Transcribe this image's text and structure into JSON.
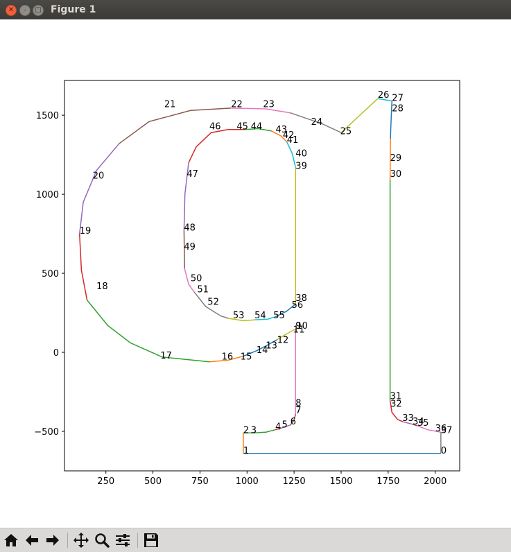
{
  "window": {
    "title": "Figure 1"
  },
  "toolbar": {
    "buttons": [
      {
        "name": "home-button",
        "icon": "home-icon"
      },
      {
        "name": "back-button",
        "icon": "arrow-left-icon"
      },
      {
        "name": "forward-button",
        "icon": "arrow-right-icon"
      },
      {
        "name": "pan-button",
        "icon": "move-icon"
      },
      {
        "name": "zoom-button",
        "icon": "magnifier-icon"
      },
      {
        "name": "configure-subplots-button",
        "icon": "sliders-icon"
      },
      {
        "name": "save-button",
        "icon": "floppy-disk-icon"
      }
    ]
  },
  "chart_data": {
    "type": "line",
    "title": "",
    "xlabel": "",
    "ylabel": "",
    "xlim": [
      30,
      2130
    ],
    "ylim": [
      -750,
      1720
    ],
    "grid": false,
    "xticks": [
      250,
      500,
      750,
      1000,
      1250,
      1500,
      1750,
      2000
    ],
    "yticks": [
      -500,
      0,
      500,
      1000,
      1500
    ],
    "xtick_labels": [
      "250",
      "500",
      "750",
      "1000",
      "1250",
      "1500",
      "1750",
      "2000"
    ],
    "ytick_labels": [
      "−500",
      "0",
      "500",
      "1000",
      "1500"
    ],
    "colors": [
      "#1f77b4",
      "#ff7f0e",
      "#2ca02c",
      "#d62728",
      "#9467bd",
      "#8c564b",
      "#e377c2",
      "#7f7f7f",
      "#bcbd22",
      "#17becf"
    ],
    "points": [
      {
        "label": "0",
        "x": 2030,
        "y": -640
      },
      {
        "label": "1",
        "x": 980,
        "y": -640
      },
      {
        "label": "2",
        "x": 980,
        "y": -510
      },
      {
        "label": "3",
        "x": 1020,
        "y": -510
      },
      {
        "label": "4",
        "x": 1150,
        "y": -490
      },
      {
        "label": "5",
        "x": 1185,
        "y": -475
      },
      {
        "label": "6",
        "x": 1230,
        "y": -455
      },
      {
        "label": "7",
        "x": 1258,
        "y": -385
      },
      {
        "label": "8",
        "x": 1258,
        "y": -340
      },
      {
        "label": "9",
        "x": 1258,
        "y": 150
      },
      {
        "label": "10",
        "x": 1262,
        "y": 150
      },
      {
        "label": "11",
        "x": 1245,
        "y": 125
      },
      {
        "label": "12",
        "x": 1160,
        "y": 60
      },
      {
        "label": "13",
        "x": 1100,
        "y": 25
      },
      {
        "label": "14",
        "x": 1050,
        "y": -5
      },
      {
        "label": "15",
        "x": 965,
        "y": -45
      },
      {
        "label": "16",
        "x": 865,
        "y": -45
      },
      {
        "label": "17",
        "x": 540,
        "y": -40
      },
      {
        "label": "18",
        "x": 200,
        "y": 400
      },
      {
        "label": "19",
        "x": 110,
        "y": 750
      },
      {
        "label": "20",
        "x": 180,
        "y": 1100
      },
      {
        "label": "21",
        "x": 560,
        "y": 1550
      },
      {
        "label": "22",
        "x": 915,
        "y": 1550
      },
      {
        "label": "23",
        "x": 1085,
        "y": 1550
      },
      {
        "label": "24",
        "x": 1340,
        "y": 1440
      },
      {
        "label": "25",
        "x": 1495,
        "y": 1380
      },
      {
        "label": "26",
        "x": 1695,
        "y": 1610
      },
      {
        "label": "27",
        "x": 1770,
        "y": 1590
      },
      {
        "label": "28",
        "x": 1770,
        "y": 1525
      },
      {
        "label": "29",
        "x": 1760,
        "y": 1210
      },
      {
        "label": "30",
        "x": 1760,
        "y": 1110
      },
      {
        "label": "31",
        "x": 1760,
        "y": -295
      },
      {
        "label": "32",
        "x": 1762,
        "y": -345
      },
      {
        "label": "33",
        "x": 1825,
        "y": -435
      },
      {
        "label": "34",
        "x": 1880,
        "y": -455
      },
      {
        "label": "35",
        "x": 1905,
        "y": -465
      },
      {
        "label": "36",
        "x": 2000,
        "y": -500
      },
      {
        "label": "37",
        "x": 2030,
        "y": -510
      },
      {
        "label": "38",
        "x": 1258,
        "y": 325
      },
      {
        "label": "39",
        "x": 1258,
        "y": 1160
      },
      {
        "label": "40",
        "x": 1258,
        "y": 1240
      },
      {
        "label": "41",
        "x": 1212,
        "y": 1325
      },
      {
        "label": "42",
        "x": 1190,
        "y": 1355
      },
      {
        "label": "43",
        "x": 1152,
        "y": 1390
      },
      {
        "label": "44",
        "x": 1020,
        "y": 1410
      },
      {
        "label": "45",
        "x": 945,
        "y": 1410
      },
      {
        "label": "46",
        "x": 800,
        "y": 1410
      },
      {
        "label": "47",
        "x": 680,
        "y": 1110
      },
      {
        "label": "48",
        "x": 665,
        "y": 770
      },
      {
        "label": "49",
        "x": 665,
        "y": 650
      },
      {
        "label": "50",
        "x": 700,
        "y": 450
      },
      {
        "label": "51",
        "x": 735,
        "y": 380
      },
      {
        "label": "52",
        "x": 790,
        "y": 300
      },
      {
        "label": "53",
        "x": 925,
        "y": 215
      },
      {
        "label": "54",
        "x": 1040,
        "y": 215
      },
      {
        "label": "55",
        "x": 1140,
        "y": 215
      },
      {
        "label": "56",
        "x": 1237,
        "y": 280
      }
    ],
    "segments": [
      {
        "from": "0",
        "to": "1",
        "color": "#1f77b4",
        "x": [
          2030,
          980
        ],
        "y": [
          -640,
          -640
        ]
      },
      {
        "from": "1",
        "to": "2",
        "color": "#ff7f0e",
        "x": [
          980,
          980
        ],
        "y": [
          -640,
          -510
        ]
      },
      {
        "from": "2",
        "to": "3",
        "color": "#2ca02c",
        "x": [
          980,
          1040
        ],
        "y": [
          -510,
          -510
        ]
      },
      {
        "from": "3",
        "to": "4",
        "color": "#2ca02c",
        "x": [
          1040,
          1100,
          1150
        ],
        "y": [
          -510,
          -505,
          -490
        ]
      },
      {
        "from": "4",
        "to": "5",
        "color": "#d62728",
        "x": [
          1150,
          1180
        ],
        "y": [
          -490,
          -480
        ]
      },
      {
        "from": "5",
        "to": "6",
        "color": "#9467bd",
        "x": [
          1180,
          1230
        ],
        "y": [
          -480,
          -460
        ]
      },
      {
        "from": "6",
        "to": "7",
        "color": "#8c564b",
        "x": [
          1230,
          1250,
          1258
        ],
        "y": [
          -460,
          -430,
          -390
        ]
      },
      {
        "from": "7",
        "to": "9",
        "color": "#e377c2",
        "x": [
          1258,
          1258
        ],
        "y": [
          -390,
          150
        ]
      },
      {
        "from": "10",
        "to": "12",
        "color": "#bcbd22",
        "x": [
          1262,
          1200,
          1160
        ],
        "y": [
          150,
          110,
          80
        ]
      },
      {
        "from": "12",
        "to": "15",
        "color": "#1f77b4",
        "x": [
          1160,
          1100,
          1050,
          980
        ],
        "y": [
          80,
          40,
          10,
          -25
        ]
      },
      {
        "from": "15",
        "to": "16",
        "color": "#ff7f0e",
        "x": [
          980,
          900,
          800
        ],
        "y": [
          -25,
          -50,
          -60
        ]
      },
      {
        "from": "16",
        "to": "18",
        "color": "#2ca02c",
        "x": [
          800,
          550,
          380,
          260,
          150
        ],
        "y": [
          -60,
          -30,
          60,
          170,
          330
        ]
      },
      {
        "from": "18",
        "to": "19",
        "color": "#d62728",
        "x": [
          150,
          120,
          110
        ],
        "y": [
          330,
          520,
          750
        ]
      },
      {
        "from": "19",
        "to": "21",
        "color": "#9467bd",
        "x": [
          110,
          130,
          200,
          320
        ],
        "y": [
          750,
          950,
          1150,
          1320
        ]
      },
      {
        "from": "21",
        "to": "22",
        "color": "#8c564b",
        "x": [
          320,
          480,
          700,
          915
        ],
        "y": [
          1320,
          1460,
          1530,
          1545
        ]
      },
      {
        "from": "22",
        "to": "24",
        "color": "#e377c2",
        "x": [
          915,
          1100,
          1230
        ],
        "y": [
          1545,
          1540,
          1515
        ]
      },
      {
        "from": "24",
        "to": "25",
        "color": "#7f7f7f",
        "x": [
          1230,
          1400,
          1500
        ],
        "y": [
          1515,
          1445,
          1390
        ]
      },
      {
        "from": "25",
        "to": "26",
        "color": "#bcbd22",
        "x": [
          1500,
          1695
        ],
        "y": [
          1390,
          1605
        ]
      },
      {
        "from": "26",
        "to": "27",
        "color": "#17becf",
        "x": [
          1695,
          1770
        ],
        "y": [
          1605,
          1590
        ]
      },
      {
        "from": "27",
        "to": "28",
        "color": "#1f77b4",
        "x": [
          1770,
          1765,
          1762
        ],
        "y": [
          1590,
          1450,
          1350
        ]
      },
      {
        "from": "28",
        "to": "30",
        "color": "#ff7f0e",
        "x": [
          1762,
          1760
        ],
        "y": [
          1350,
          1090
        ]
      },
      {
        "from": "30",
        "to": "31",
        "color": "#2ca02c",
        "x": [
          1760,
          1760
        ],
        "y": [
          1090,
          -305
        ]
      },
      {
        "from": "31",
        "to": "33",
        "color": "#d62728",
        "x": [
          1760,
          1770,
          1800,
          1830
        ],
        "y": [
          -305,
          -380,
          -425,
          -440
        ]
      },
      {
        "from": "33",
        "to": "34",
        "color": "#9467bd",
        "x": [
          1830,
          1880
        ],
        "y": [
          -440,
          -455
        ]
      },
      {
        "from": "34",
        "to": "35",
        "color": "#8c564b",
        "x": [
          1880,
          1905
        ],
        "y": [
          -455,
          -465
        ]
      },
      {
        "from": "35",
        "to": "37",
        "color": "#e377c2",
        "x": [
          1905,
          1960,
          2030
        ],
        "y": [
          -465,
          -490,
          -505
        ]
      },
      {
        "from": "37",
        "to": "0",
        "color": "#7f7f7f",
        "x": [
          2030,
          2030
        ],
        "y": [
          -505,
          -640
        ]
      },
      {
        "from": "38",
        "to": "39",
        "color": "#bcbd22",
        "x": [
          1258,
          1258
        ],
        "y": [
          315,
          1170
        ]
      },
      {
        "from": "39",
        "to": "41",
        "color": "#17becf",
        "x": [
          1258,
          1240,
          1212
        ],
        "y": [
          1170,
          1260,
          1330
        ]
      },
      {
        "from": "41",
        "to": "43",
        "color": "#ff7f0e",
        "x": [
          1212,
          1180,
          1130
        ],
        "y": [
          1330,
          1370,
          1400
        ]
      },
      {
        "from": "43",
        "to": "45",
        "color": "#2ca02c",
        "x": [
          1130,
          1060,
          990
        ],
        "y": [
          1400,
          1415,
          1410
        ]
      },
      {
        "from": "45",
        "to": "47",
        "color": "#d62728",
        "x": [
          990,
          900,
          810,
          730,
          690
        ],
        "y": [
          1410,
          1410,
          1390,
          1300,
          1200
        ]
      },
      {
        "from": "47",
        "to": "48",
        "color": "#9467bd",
        "x": [
          690,
          670,
          665
        ],
        "y": [
          1200,
          1000,
          770
        ]
      },
      {
        "from": "48",
        "to": "49",
        "color": "#8c564b",
        "x": [
          665,
          668
        ],
        "y": [
          770,
          530
        ]
      },
      {
        "from": "49",
        "to": "51",
        "color": "#e377c2",
        "x": [
          668,
          690,
          720
        ],
        "y": [
          530,
          430,
          380
        ]
      },
      {
        "from": "51",
        "to": "53",
        "color": "#7f7f7f",
        "x": [
          720,
          780,
          860,
          900
        ],
        "y": [
          380,
          290,
          230,
          215
        ]
      },
      {
        "from": "53",
        "to": "54",
        "color": "#bcbd22",
        "x": [
          900,
          980,
          1040
        ],
        "y": [
          215,
          200,
          205
        ]
      },
      {
        "from": "54",
        "to": "55",
        "color": "#17becf",
        "x": [
          1040,
          1110,
          1150
        ],
        "y": [
          205,
          210,
          225
        ]
      },
      {
        "from": "55",
        "to": "56",
        "color": "#1f77b4",
        "x": [
          1150,
          1210,
          1258
        ],
        "y": [
          225,
          260,
          305
        ]
      },
      {
        "from": "56",
        "to": "38",
        "color": "#bcbd22",
        "x": [
          1258,
          1258
        ],
        "y": [
          305,
          315
        ]
      }
    ]
  }
}
